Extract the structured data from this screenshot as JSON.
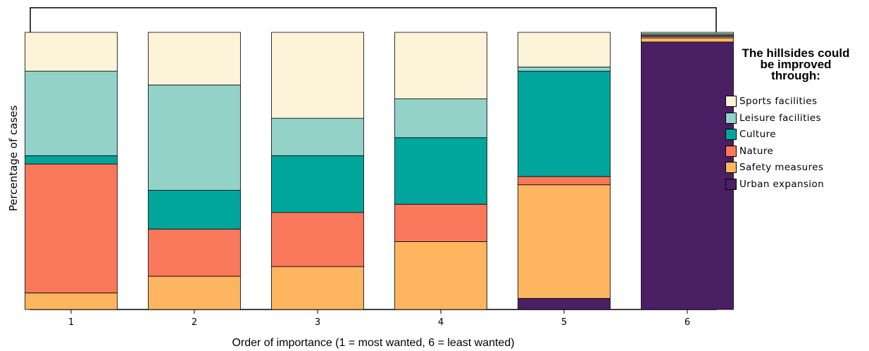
{
  "chart_data": {
    "type": "bar",
    "stacked": true,
    "normalized_percent": true,
    "xlabel": "Order of importance (1 = most wanted, 6 = least wanted)",
    "ylabel": "Percentage of cases",
    "ylim": [
      0,
      100
    ],
    "grid": false,
    "legend_placement": "right",
    "categories": [
      "1",
      "2",
      "3",
      "4",
      "5",
      "6"
    ],
    "series": [
      {
        "name": "Urban expansion",
        "color": "#4a1f63",
        "values": [
          0,
          0,
          0,
          0,
          4,
          96.5
        ]
      },
      {
        "name": "Safety measures",
        "color": "#fdb560",
        "values": [
          6,
          12,
          15.5,
          24.5,
          41,
          1.5
        ]
      },
      {
        "name": "Nature",
        "color": "#f9785b",
        "values": [
          46.5,
          17,
          19.5,
          13.5,
          3,
          0.6
        ]
      },
      {
        "name": "Culture",
        "color": "#00a69c",
        "values": [
          3,
          14,
          20.5,
          24,
          38,
          0.4
        ]
      },
      {
        "name": "Leisure facilities",
        "color": "#93d2c9",
        "values": [
          30.5,
          38,
          13.5,
          14,
          1.5,
          0.5
        ]
      },
      {
        "name": "Sports facilities",
        "color": "#fcf3d8",
        "values": [
          14,
          19,
          31,
          24,
          12.5,
          0.5
        ]
      }
    ]
  },
  "legend": {
    "title_lines": [
      "The hillsides could",
      "be improved",
      "through:"
    ],
    "items": [
      {
        "label": "Sports facilities",
        "color": "#fcf3d8"
      },
      {
        "label": "Leisure facilities",
        "color": "#93d2c9"
      },
      {
        "label": "Culture",
        "color": "#00a69c"
      },
      {
        "label": "Nature",
        "color": "#f9785b"
      },
      {
        "label": "Safety measures",
        "color": "#fdb560"
      },
      {
        "label": "Urban expansion",
        "color": "#4a1f63"
      }
    ]
  }
}
